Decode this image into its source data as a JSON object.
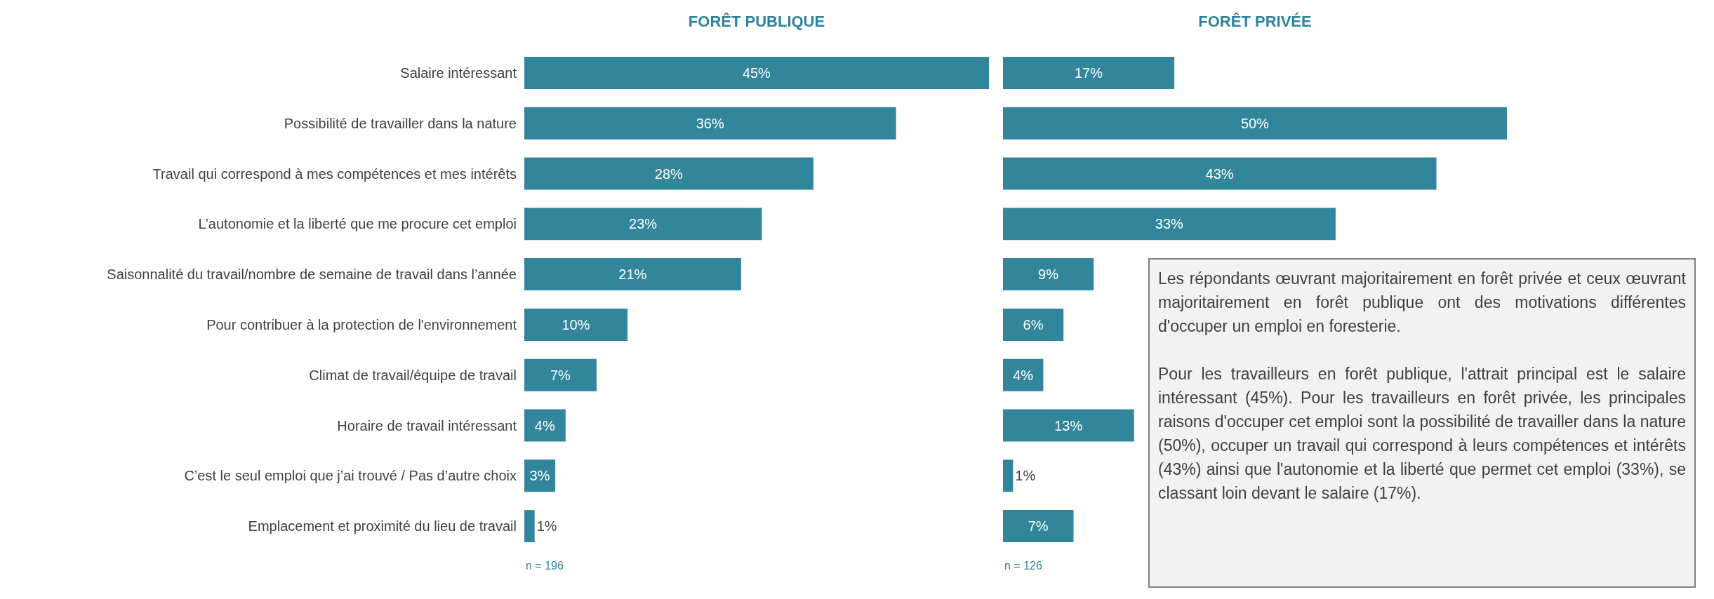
{
  "chart_data": [
    {
      "type": "bar",
      "orientation": "horizontal",
      "title": "FORÊT PUBLIQUE",
      "categories": [
        "Salaire intéressant",
        "Possibilité de travailler dans la nature",
        "Travail qui correspond à mes compétences et mes intérêts",
        "L’autonomie et la liberté que me procure cet emploi",
        "Saisonnalité du travail/nombre de semaine de travail dans l’année",
        "Pour contribuer à la protection de l'environnement",
        "Climat de travail/équipe de travail",
        "Horaire de travail intéressant",
        "C’est le seul emploi que j’ai trouvé / Pas d’autre choix",
        "Emplacement et proximité du lieu de travail"
      ],
      "values": [
        45,
        36,
        28,
        23,
        21,
        10,
        7,
        4,
        3,
        1
      ],
      "value_labels": [
        "45%",
        "36%",
        "28%",
        "23%",
        "21%",
        "10%",
        "7%",
        "4%",
        "3%",
        "1%"
      ],
      "color": "#31869b",
      "annotations": [
        "n = 196"
      ]
    },
    {
      "type": "bar",
      "orientation": "horizontal",
      "title": "FORÊT PRIVÉE",
      "categories": [
        null,
        null,
        null,
        null,
        null,
        null,
        null,
        null,
        null,
        null
      ],
      "values": [
        17,
        50,
        43,
        33,
        9,
        6,
        4,
        13,
        1,
        7
      ],
      "value_labels": [
        "17%",
        "50%",
        "43%",
        "33%",
        "9%",
        "6%",
        "4%",
        "13%",
        "1%",
        "7%"
      ],
      "color": "#31869b",
      "annotations": [
        "n = 126"
      ]
    },
    {
      "type": "other",
      "annotations": [
        "Les répondants œuvrant majoritairement en forêt privée et ceux œuvrant majoritairement  en forêt publique ont des motivations différentes d'occuper un emploi en foresterie.",
        "Pour les travailleurs en forêt publique, l'attrait principal est le salaire intéressant (45%). Pour les travailleurs en forêt privée, les principales raisons d'occuper cet emploi sont la possibilité de travailler dans la nature (50%), occuper un travail qui correspond à leurs compétences et intérêts (43%) ainsi que l'autonomie et la liberté que permet cet emploi (33%), se classant loin devant le salaire (17%)."
      ]
    }
  ]
}
